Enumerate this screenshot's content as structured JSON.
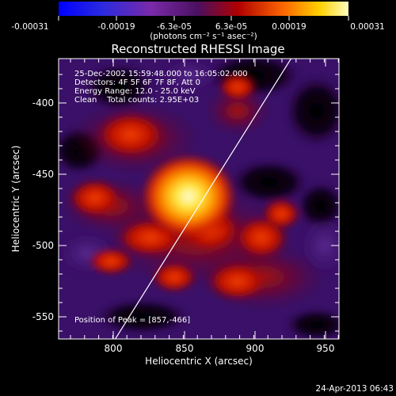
{
  "colorbar": {
    "tick_labels": [
      "-0.00031",
      "-0.00019",
      "-6.3e-05",
      "6.3e-05",
      "0.00019",
      "0.00031"
    ],
    "units": "(photons cm⁻² s⁻¹ asec⁻²)"
  },
  "image": {
    "title": "Reconstructed RHESSI Image",
    "info": {
      "time": "25-Dec-2002 15:59:48.000 to 16:05:02.000",
      "detectors": "Detectors: 4F 5F 6F 7F 8F, Att 0",
      "energy": "Energy Range: 12.0 - 25.0 keV",
      "method": "Clean    Total counts: 2.95E+03"
    },
    "peak_label": "Position of Peak = [857,-466]",
    "xlabel": "Heliocentric X (arcsec)",
    "ylabel": "Heliocentric Y (arcsec)",
    "x_ticks": [
      "800",
      "850",
      "900",
      "950"
    ],
    "y_ticks": [
      "-400",
      "-450",
      "-500",
      "-550"
    ]
  },
  "footer": {
    "timestamp": "24-Apr-2013 06:43"
  },
  "colors": {
    "background": "#000000",
    "limb_line": "#ffffff",
    "peak": "#fff8a0",
    "low": "#3a1068"
  }
}
